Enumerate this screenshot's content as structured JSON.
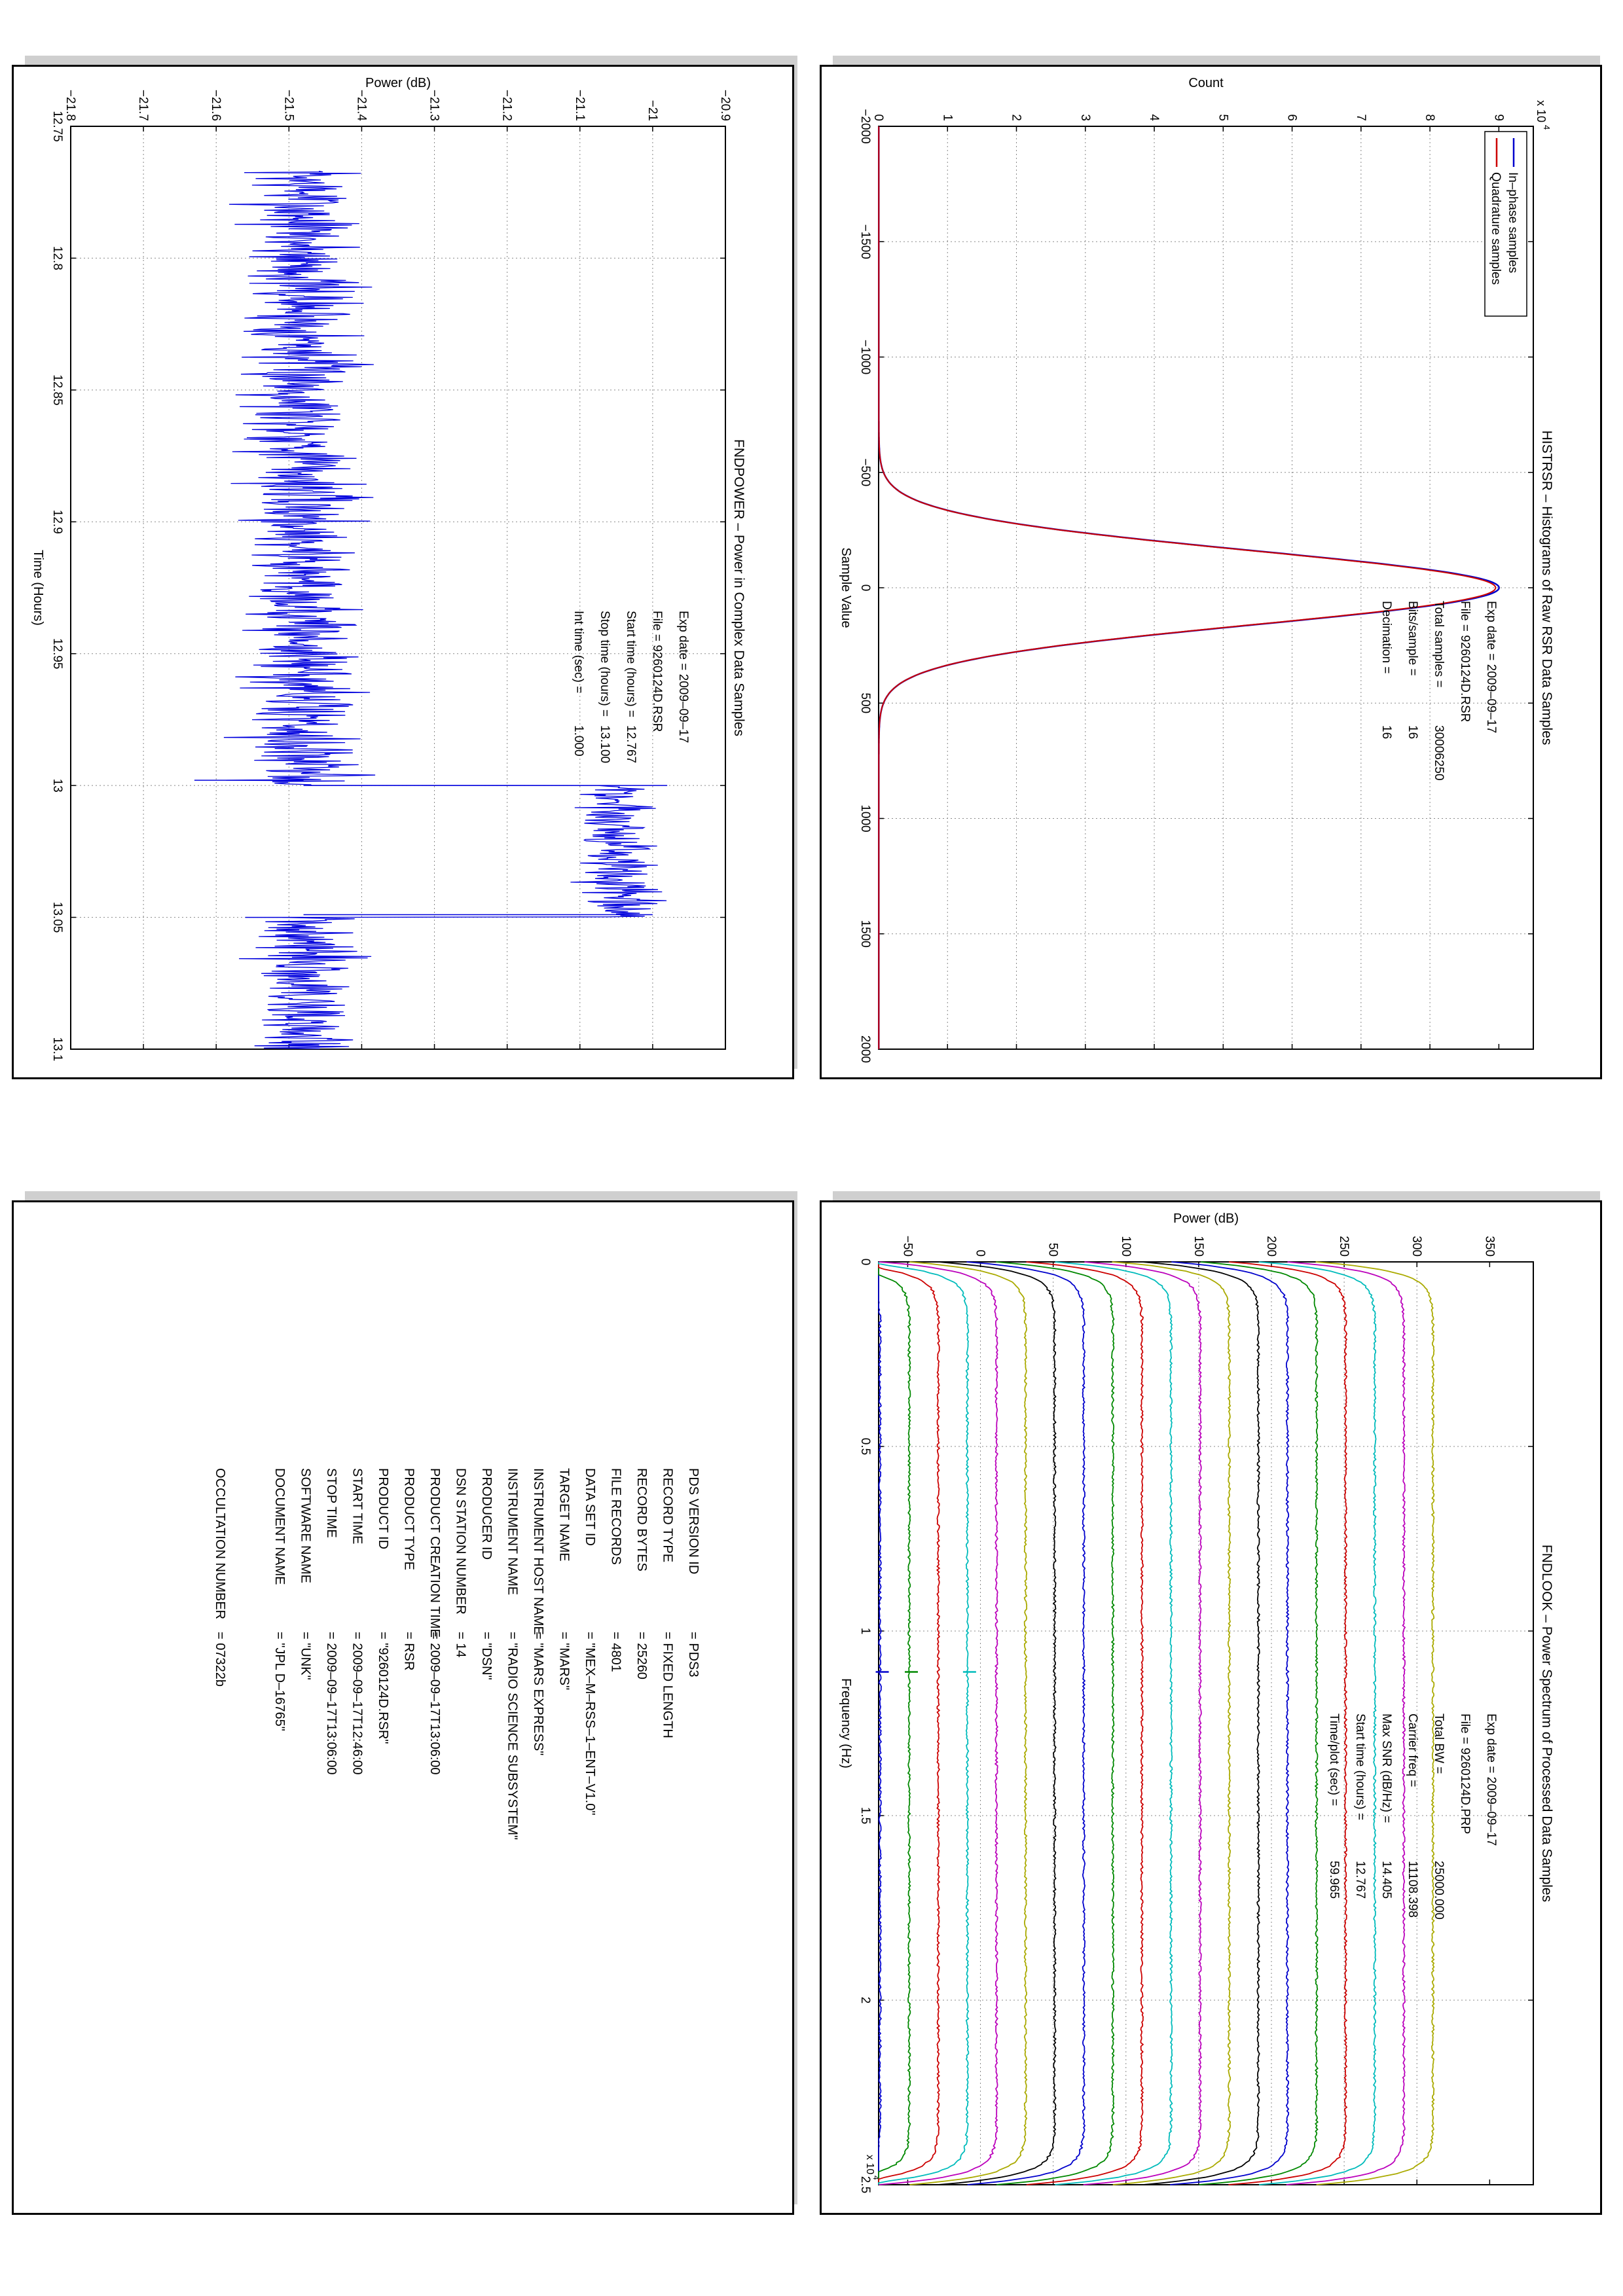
{
  "chart_data": [
    {
      "type": "line",
      "id": "histrsr",
      "title": "HISTRSR – Histograms of Raw RSR Data Samples",
      "xlabel": "Sample Value",
      "ylabel": "Count",
      "xlim": [
        -2000,
        2000
      ],
      "ylim": [
        0,
        95000
      ],
      "xticks": [
        "−2000",
        "−1500",
        "−1000",
        "−500",
        "0",
        "500",
        "1000",
        "1500",
        "2000"
      ],
      "yticks": [
        "0",
        "1",
        "2",
        "3",
        "4",
        "5",
        "6",
        "7",
        "8",
        "9"
      ],
      "y_multiplier": "x 10",
      "y_multiplier_exp": "4",
      "grid": true,
      "legend_placement": "top-left",
      "series": [
        {
          "name": "In–phase samples",
          "color": "#0000cc",
          "mu": 0,
          "sigma": 160,
          "peak": 90000
        },
        {
          "name": "Quadrature samples",
          "color": "#cc0000",
          "mu": 0,
          "sigma": 160,
          "peak": 89500
        }
      ],
      "info": [
        {
          "label": "Exp date = 2009–09–17",
          "value": ""
        },
        {
          "label": "File = 9260124D.RSR",
          "value": ""
        },
        {
          "label": "Total samples =",
          "value": "30006250"
        },
        {
          "label": "Bits/sample  =",
          "value": "16"
        },
        {
          "label": "Decimation  =",
          "value": "16"
        }
      ]
    },
    {
      "type": "line",
      "id": "fndpower",
      "title": "FNDPOWER – Power in Complex Data Samples",
      "xlabel": "Time (Hours)",
      "ylabel": "Power (dB)",
      "xlim": [
        12.75,
        13.1
      ],
      "ylim": [
        -21.8,
        -20.9
      ],
      "xticks": [
        "12.75",
        "12.8",
        "12.85",
        "12.9",
        "12.95",
        "13",
        "13.05",
        "13.1"
      ],
      "yticks": [
        "−21.8",
        "−21.7",
        "−21.6",
        "−21.5",
        "−21.4",
        "−21.3",
        "−21.2",
        "−21.1",
        "−21",
        "−20.9"
      ],
      "grid": true,
      "series": [
        {
          "name": "",
          "color": "#0000dd",
          "segments": [
            {
              "x0": 12.767,
              "x1": 13.0,
              "mean": -21.48,
              "noise": 0.05
            },
            {
              "x0": 13.0,
              "x1": 13.05,
              "mean": -21.05,
              "noise": 0.035
            },
            {
              "x0": 13.05,
              "x1": 13.1,
              "mean": -21.48,
              "noise": 0.05
            }
          ],
          "spikes": [
            {
              "x": 12.998,
              "y": -21.63
            },
            {
              "x": 13.0,
              "y": -20.98
            },
            {
              "x": 13.049,
              "y": -21.0
            },
            {
              "x": 13.05,
              "y": -21.56
            }
          ]
        }
      ],
      "info": [
        {
          "label": "Exp date = 2009–09–17",
          "value": ""
        },
        {
          "label": "File = 9260124D.RSR",
          "value": ""
        },
        {
          "label": "Start time (hours) =",
          "value": "12.767"
        },
        {
          "label": "Stop time (hours) =",
          "value": "13.100"
        },
        {
          "label": "Int time (sec) =",
          "value": "1.000"
        }
      ]
    },
    {
      "type": "line",
      "id": "fndlook",
      "title": "FNDLOOK – Power Spectrum of Processed Data Samples",
      "xlabel": "Frequency (Hz)",
      "ylabel": "Power (dB)",
      "xlim": [
        0,
        25000
      ],
      "ylim": [
        -70,
        380
      ],
      "xticks": [
        "0",
        "0.5",
        "1",
        "1.5",
        "2",
        "2.5"
      ],
      "yticks": [
        "−50",
        "0",
        "50",
        "100",
        "150",
        "200",
        "250",
        "300",
        "350"
      ],
      "x_multiplier": "x 10",
      "x_multiplier_exp": "4",
      "grid": true,
      "series": [
        {
          "name": "",
          "color": "#0000cc",
          "level": -69
        },
        {
          "name": "",
          "color": "#008800",
          "level": -49
        },
        {
          "name": "",
          "color": "#cc0000",
          "level": -29
        },
        {
          "name": "",
          "color": "#00bbbb",
          "level": -9
        },
        {
          "name": "",
          "color": "#bb00bb",
          "level": 11
        },
        {
          "name": "",
          "color": "#aaaa00",
          "level": 31
        },
        {
          "name": "",
          "color": "#000000",
          "level": 51
        },
        {
          "name": "",
          "color": "#0000cc",
          "level": 71
        },
        {
          "name": "",
          "color": "#008800",
          "level": 91
        },
        {
          "name": "",
          "color": "#cc0000",
          "level": 111
        },
        {
          "name": "",
          "color": "#00bbbb",
          "level": 131
        },
        {
          "name": "",
          "color": "#bb00bb",
          "level": 151
        },
        {
          "name": "",
          "color": "#aaaa00",
          "level": 171
        },
        {
          "name": "",
          "color": "#000000",
          "level": 191
        },
        {
          "name": "",
          "color": "#0000cc",
          "level": 211
        },
        {
          "name": "",
          "color": "#008800",
          "level": 231
        },
        {
          "name": "",
          "color": "#cc0000",
          "level": 251
        },
        {
          "name": "",
          "color": "#00bbbb",
          "level": 271
        },
        {
          "name": "",
          "color": "#bb00bb",
          "level": 291
        },
        {
          "name": "",
          "color": "#aaaa00",
          "level": 311
        }
      ],
      "info": [
        {
          "label": "Exp date = 2009–09–17",
          "value": ""
        },
        {
          "label": "File = 9260124D.PRP",
          "value": ""
        },
        {
          "label": "Total BW =",
          "value": "25000.000"
        },
        {
          "label": "Carrier freq =",
          "value": "11108.398"
        },
        {
          "label": "Max SNR (dB/Hz) =",
          "value": "14.405"
        },
        {
          "label": "Start time (hours) =",
          "value": "12.767"
        },
        {
          "label": "Time/plot (sec) =",
          "value": "59.965"
        }
      ]
    }
  ],
  "label_table": {
    "rows": [
      {
        "key": "PDS VERSION ID",
        "value": "= PDS3"
      },
      {
        "key": "RECORD TYPE",
        "value": "= FIXED LENGTH"
      },
      {
        "key": "RECORD BYTES",
        "value": "= 25260"
      },
      {
        "key": "FILE RECORDS",
        "value": "= 4801"
      },
      {
        "key": "DATA SET ID",
        "value": "= \"MEX–M–RSS–1–ENT–V1.0\""
      },
      {
        "key": "TARGET NAME",
        "value": "= \"MARS\""
      },
      {
        "key": "INSTRUMENT HOST NAME",
        "value": "= \"MARS EXPRESS\""
      },
      {
        "key": "INSTRUMENT NAME",
        "value": "= \"RADIO SCIENCE SUBSYSTEM\""
      },
      {
        "key": "PRODUCER ID",
        "value": "= \"DSN\""
      },
      {
        "key": "DSN STATION NUMBER",
        "value": "= 14"
      },
      {
        "key": "PRODUCT CREATION TIME",
        "value": "= 2009–09–17T13:06:00"
      },
      {
        "key": "PRODUCT TYPE",
        "value": "= RSR"
      },
      {
        "key": "PRODUCT ID",
        "value": "= \"9260124D.RSR\""
      },
      {
        "key": "START TIME",
        "value": "= 2009–09–17T12:46:00"
      },
      {
        "key": "STOP TIME",
        "value": "= 2009–09–17T13:06:00"
      },
      {
        "key": "SOFTWARE NAME",
        "value": "= \"UNK\""
      },
      {
        "key": "DOCUMENT NAME",
        "value": "= \"JPL D–16765\""
      }
    ],
    "extra": {
      "key": "OCCULTATION NUMBER",
      "value": "= 07322b"
    }
  }
}
